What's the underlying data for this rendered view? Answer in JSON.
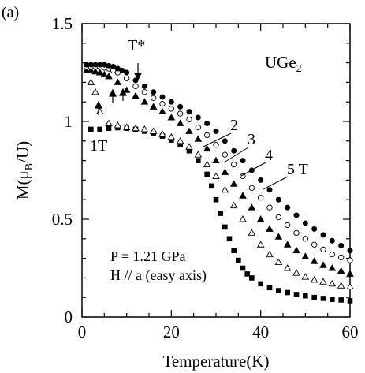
{
  "panel_label": "(a)",
  "chart_data": {
    "type": "scatter",
    "title": "",
    "xlabel": "Temperature(K)",
    "ylabel": "M(μB/U)",
    "xlim": [
      0,
      60
    ],
    "ylim": [
      0,
      1.5
    ],
    "xticks": [
      0,
      20,
      40,
      60
    ],
    "yticks": [
      0,
      0.5,
      1,
      1.5
    ],
    "ytick_labels": [
      "0",
      "0.5",
      "1",
      "1.5"
    ],
    "grid": false,
    "annotations": {
      "compound": "UGe2",
      "tstar": "T*",
      "pressure": "P = 1.21 GPa",
      "field_dir": "H // a (easy axis)",
      "field_labels": [
        "1T",
        "2",
        "3",
        "4",
        "5 T"
      ]
    },
    "series": [
      {
        "name": "1T",
        "marker": "filled-square",
        "x": [
          2,
          4,
          6,
          8,
          10,
          12,
          14,
          16,
          18,
          20,
          22,
          24,
          26,
          28,
          29,
          30,
          31,
          32,
          33,
          34,
          35,
          36,
          37,
          38,
          40,
          42,
          44,
          46,
          48,
          50,
          52,
          54,
          56,
          58,
          60
        ],
        "y": [
          0.96,
          0.96,
          0.965,
          0.968,
          0.965,
          0.96,
          0.95,
          0.94,
          0.925,
          0.905,
          0.88,
          0.85,
          0.8,
          0.73,
          0.67,
          0.6,
          0.53,
          0.46,
          0.4,
          0.34,
          0.29,
          0.25,
          0.22,
          0.2,
          0.17,
          0.15,
          0.135,
          0.125,
          0.115,
          0.108,
          0.1,
          0.095,
          0.09,
          0.087,
          0.083
        ]
      },
      {
        "name": "2",
        "marker": "open-triangle",
        "x": [
          2,
          3,
          4,
          6,
          8,
          10,
          12,
          14,
          16,
          18,
          20,
          22,
          24,
          26,
          28,
          30,
          32,
          34,
          36,
          38,
          40,
          42,
          44,
          46,
          48,
          50,
          52,
          54,
          56,
          58,
          60
        ],
        "y": [
          1.2,
          1.15,
          1.05,
          0.99,
          0.98,
          0.97,
          0.965,
          0.96,
          0.95,
          0.935,
          0.92,
          0.9,
          0.87,
          0.83,
          0.78,
          0.72,
          0.65,
          0.57,
          0.5,
          0.43,
          0.37,
          0.32,
          0.28,
          0.25,
          0.225,
          0.205,
          0.19,
          0.18,
          0.17,
          0.16,
          0.155
        ]
      },
      {
        "name": "3",
        "marker": "filled-triangle",
        "x": [
          1,
          2,
          3,
          4,
          5,
          6,
          8,
          10,
          12,
          14,
          16,
          18,
          20,
          22,
          24,
          26,
          28,
          30,
          32,
          34,
          36,
          38,
          40,
          42,
          44,
          46,
          48,
          50,
          52,
          54,
          56,
          58,
          60
        ],
        "y": [
          1.26,
          1.26,
          1.255,
          1.25,
          1.24,
          1.23,
          1.2,
          1.16,
          1.13,
          1.1,
          1.075,
          1.05,
          1.02,
          0.99,
          0.95,
          0.91,
          0.86,
          0.8,
          0.74,
          0.68,
          0.62,
          0.56,
          0.5,
          0.45,
          0.41,
          0.37,
          0.34,
          0.31,
          0.285,
          0.265,
          0.25,
          0.235,
          0.22
        ]
      },
      {
        "name": "4",
        "marker": "open-circle",
        "x": [
          1,
          2,
          3,
          4,
          5,
          6,
          7,
          8,
          10,
          12,
          14,
          16,
          18,
          20,
          22,
          24,
          26,
          28,
          30,
          32,
          34,
          36,
          38,
          40,
          42,
          44,
          46,
          48,
          50,
          52,
          54,
          56,
          58,
          60
        ],
        "y": [
          1.28,
          1.28,
          1.28,
          1.28,
          1.275,
          1.27,
          1.26,
          1.25,
          1.22,
          1.18,
          1.15,
          1.12,
          1.09,
          1.065,
          1.04,
          1.01,
          0.97,
          0.93,
          0.88,
          0.83,
          0.78,
          0.72,
          0.66,
          0.61,
          0.56,
          0.51,
          0.47,
          0.43,
          0.4,
          0.37,
          0.345,
          0.32,
          0.305,
          0.29
        ]
      },
      {
        "name": "5 T",
        "marker": "filled-circle",
        "x": [
          1,
          2,
          3,
          4,
          5,
          6,
          7,
          8,
          9,
          10,
          12,
          14,
          16,
          18,
          20,
          22,
          24,
          26,
          28,
          30,
          32,
          34,
          36,
          38,
          40,
          42,
          44,
          46,
          48,
          50,
          52,
          54,
          56,
          58,
          60
        ],
        "y": [
          1.29,
          1.29,
          1.29,
          1.29,
          1.29,
          1.285,
          1.28,
          1.27,
          1.26,
          1.25,
          1.21,
          1.18,
          1.15,
          1.125,
          1.1,
          1.075,
          1.05,
          1.02,
          0.99,
          0.95,
          0.9,
          0.85,
          0.8,
          0.75,
          0.7,
          0.65,
          0.6,
          0.56,
          0.52,
          0.48,
          0.45,
          0.42,
          0.39,
          0.365,
          0.34
        ]
      }
    ]
  }
}
